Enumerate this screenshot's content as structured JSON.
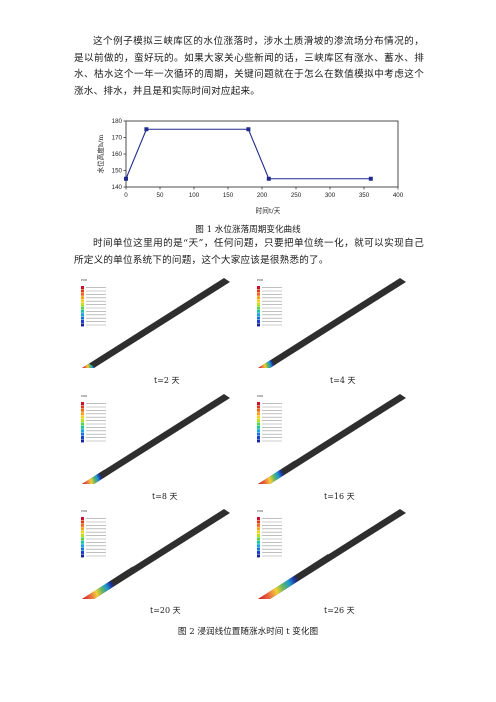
{
  "text": {
    "para1": "这个例子模拟三峡库区的水位涨落时，涉水土质滑坡的渗流场分布情况的，是以前做的，蛮好玩的。如果大家关心些新闻的话，三峡库区有涨水、蓄水、排水、枯水这个一年一次循环的周期，关键问题就在于怎么在数值模拟中考虑这个涨水、排水，并且是和实际时间对应起来。",
    "para2": "时间单位这里用的是“天”，任何问题，只要把单位统一化，就可以实现自己所定义的单位系统下的问题，这个大家应该是很熟悉的了。",
    "fig1_caption": "图 1  水位涨落周期变化曲线",
    "fig2_caption": "图 2  浸润线位置随涨水时间 t 变化图"
  },
  "panels": [
    {
      "label": "t=2 天",
      "front": 0.05
    },
    {
      "label": "t=4 天",
      "front": 0.09
    },
    {
      "label": "t=8 天",
      "front": 0.16
    },
    {
      "label": "t=16 天",
      "front": 0.26
    },
    {
      "label": "t=20 天",
      "front": 0.36
    },
    {
      "label": "t=26 天",
      "front": 0.5
    }
  ],
  "chart_data": {
    "type": "line",
    "xlabel": "时间t/天",
    "ylabel": "水位高度h/m",
    "xlim": [
      0,
      400
    ],
    "ylim": [
      140,
      180
    ],
    "xticks": [
      0,
      50,
      100,
      150,
      200,
      250,
      300,
      350,
      400
    ],
    "yticks": [
      140,
      150,
      160,
      170,
      180
    ],
    "series": [
      {
        "x": [
          0,
          30,
          180,
          210,
          360
        ],
        "y": [
          145,
          175,
          175,
          145,
          145
        ],
        "color": "#1f2a8c"
      }
    ],
    "grid": false
  }
}
